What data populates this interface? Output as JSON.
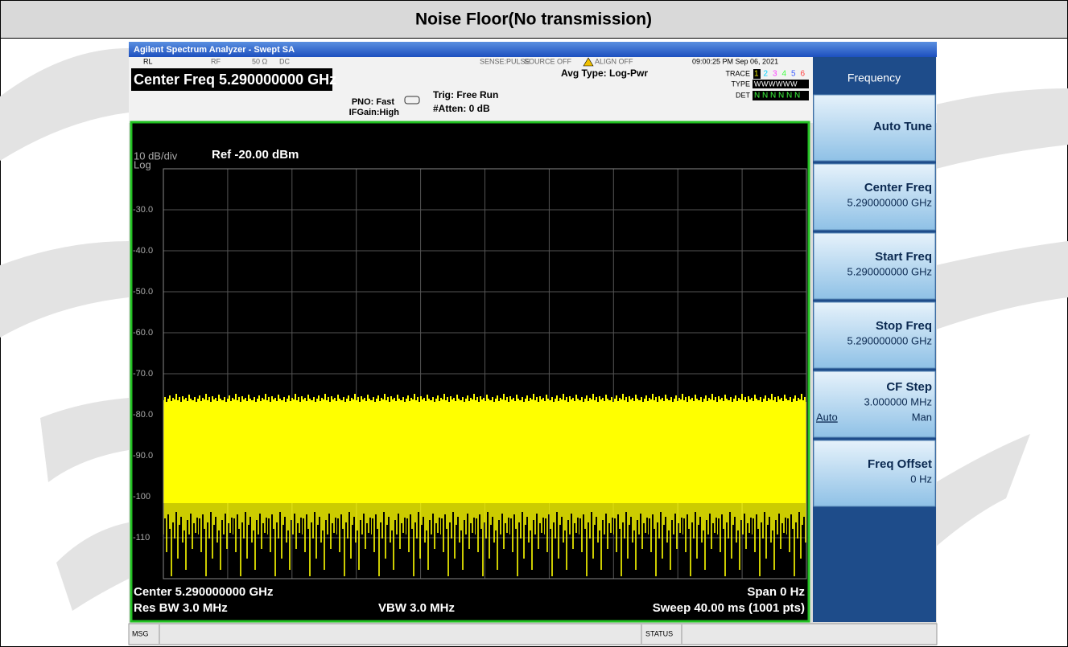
{
  "title": "Noise Floor(No transmission)",
  "window": {
    "title": "Agilent Spectrum Analyzer - Swept SA"
  },
  "status_bar": {
    "rl": "RL",
    "rf": "RF",
    "impedance": "50 Ω",
    "coupling": "DC",
    "sense": "SENSE:PULSE",
    "source": "SOURCE OFF",
    "align": "ALIGN OFF",
    "timestamp": "09:00:25 PM Sep 06, 2021"
  },
  "header": {
    "center_freq": "Center Freq 5.290000000 GHz",
    "pno": "PNO: Fast",
    "ifgain": "IFGain:High",
    "trig": "Trig: Free Run",
    "atten": "#Atten: 0 dB",
    "avg_type": "Avg Type: Log-Pwr",
    "trace_label": "TRACE",
    "trace_numbers": [
      "1",
      "2",
      "3",
      "4",
      "5",
      "6"
    ],
    "type_label": "TYPE",
    "type_value": "WWWWWW",
    "det_label": "DET",
    "det_value": "N N N N N N"
  },
  "plot": {
    "scale": "10 dB/div",
    "scale_type": "Log",
    "ref": "Ref -20.00 dBm",
    "y_labels": [
      "-30.0",
      "-40.0",
      "-50.0",
      "-60.0",
      "-70.0",
      "-80.0",
      "-90.0",
      "-100",
      "-110"
    ],
    "center": "Center 5.290000000 GHz",
    "span": "Span 0 Hz",
    "res_bw": "Res BW 3.0 MHz",
    "vbw": "VBW 3.0 MHz",
    "sweep": "Sweep  40.00 ms (1001 pts)"
  },
  "softkeys": {
    "menu": "Frequency",
    "keys": [
      {
        "label": "Auto Tune"
      },
      {
        "label": "Center Freq",
        "value": "5.290000000 GHz"
      },
      {
        "label": "Start Freq",
        "value": "5.290000000 GHz"
      },
      {
        "label": "Stop Freq",
        "value": "5.290000000 GHz"
      },
      {
        "label": "CF Step",
        "value": "3.000000 MHz",
        "options": [
          "Auto",
          "Man"
        ]
      },
      {
        "label": "Freq Offset",
        "value": "0 Hz"
      }
    ]
  },
  "message_bar": {
    "msg": "MSG",
    "status": "STATUS"
  }
}
